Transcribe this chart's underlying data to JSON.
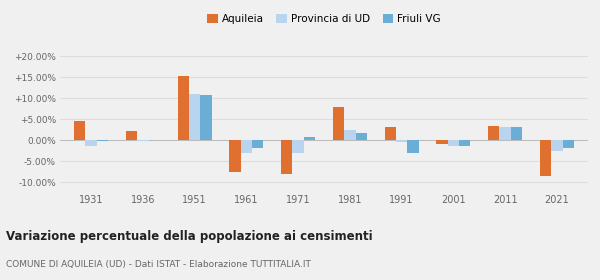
{
  "years": [
    1931,
    1936,
    1951,
    1961,
    1971,
    1981,
    1991,
    2001,
    2011,
    2021
  ],
  "year_labels": [
    "1931",
    "1936",
    "1951",
    "1961",
    "1971",
    "1981",
    "1991",
    "2001",
    "2011",
    "2021"
  ],
  "aquileia": [
    4.5,
    2.2,
    15.3,
    -7.5,
    -8.0,
    7.8,
    3.1,
    -1.0,
    3.3,
    -8.5
  ],
  "provincia_ud": [
    -1.5,
    -0.3,
    11.0,
    -3.0,
    -3.0,
    2.5,
    -0.5,
    -1.5,
    3.1,
    -2.5
  ],
  "friuli_vg": [
    -0.2,
    0.0,
    10.7,
    -1.8,
    0.7,
    1.7,
    -3.2,
    -1.5,
    3.0,
    -1.8
  ],
  "color_aquileia": "#e07030",
  "color_provincia": "#b8d4ee",
  "color_friuli": "#6aaed6",
  "bar_width": 0.22,
  "ylim": [
    -12,
    22
  ],
  "yticks": [
    -10,
    -5,
    0,
    5,
    10,
    15,
    20
  ],
  "ytick_labels": [
    "-10.00%",
    "-5.00%",
    "0.00%",
    "+5.00%",
    "+10.00%",
    "+15.00%",
    "+20.00%"
  ],
  "title": "Variazione percentuale della popolazione ai censimenti",
  "subtitle": "COMUNE DI AQUILEIA (UD) - Dati ISTAT - Elaborazione TUTTITALIA.IT",
  "legend_labels": [
    "Aquileia",
    "Provincia di UD",
    "Friuli VG"
  ],
  "bg_color": "#f0f0f0",
  "grid_color": "#dddddd"
}
